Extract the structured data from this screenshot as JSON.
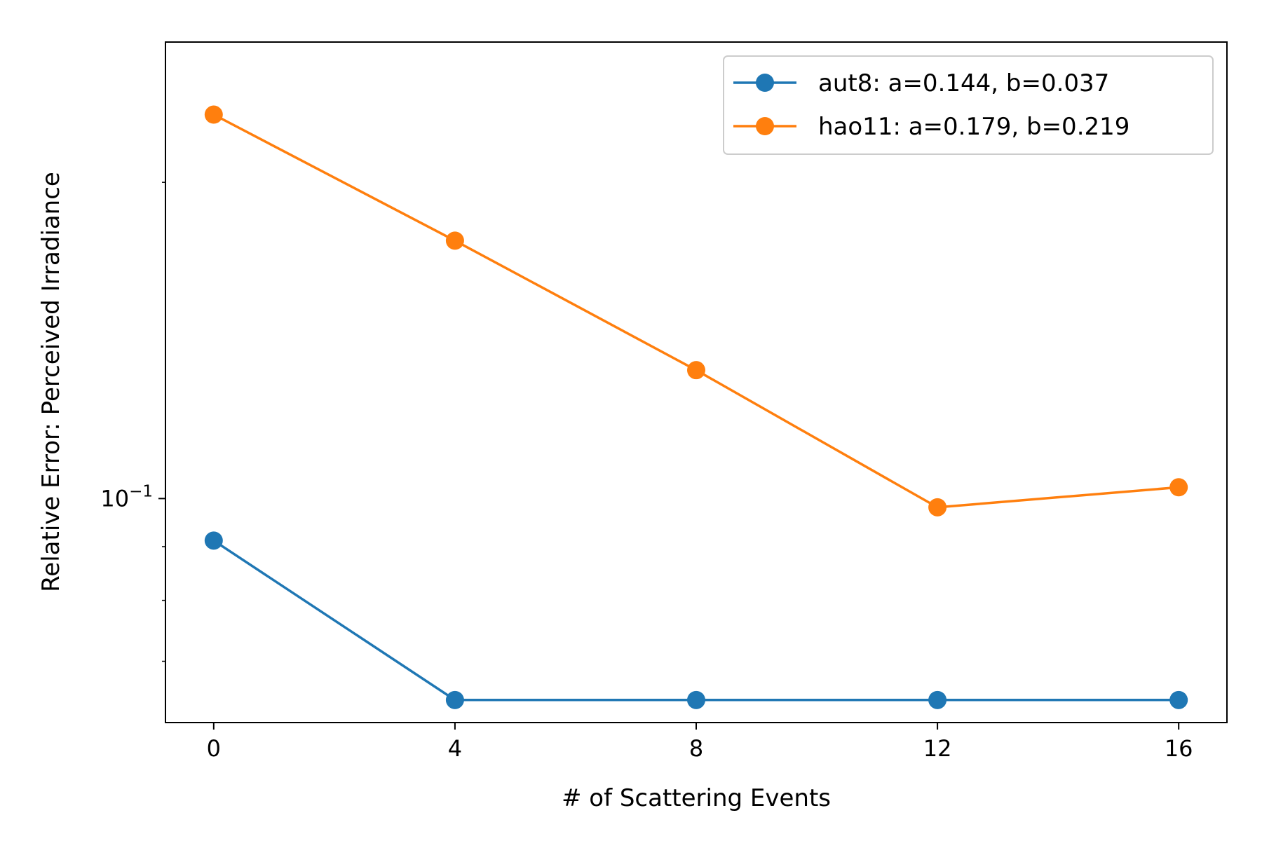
{
  "chart_data": {
    "type": "line",
    "xlabel": "# of Scattering Events",
    "ylabel": "Relative Error: Perceived Irradiance",
    "x_scale": "linear",
    "y_scale": "log",
    "xlim": [
      -0.8,
      16.8
    ],
    "ylim": [
      0.0612,
      0.272
    ],
    "x_ticks": [
      0,
      4,
      8,
      12,
      16
    ],
    "x_tick_labels": [
      "0",
      "4",
      "8",
      "12",
      "16"
    ],
    "y_major_ticks": [
      0.1
    ],
    "y_major_tick_label_base": "10",
    "y_major_tick_label_exponent": "−1",
    "grid": false,
    "legend_position": "upper right",
    "series": [
      {
        "name": "aut8: a=0.144, b=0.037",
        "color": "#1f77b4",
        "x": [
          0,
          4,
          8,
          12,
          16
        ],
        "y": [
          0.0912,
          0.0643,
          0.0643,
          0.0643,
          0.0643
        ]
      },
      {
        "name": "hao11: a=0.179, b=0.219",
        "color": "#ff7f0e",
        "x": [
          0,
          4,
          8,
          12,
          16
        ],
        "y": [
          0.232,
          0.176,
          0.1325,
          0.0981,
          0.1025
        ]
      }
    ]
  }
}
